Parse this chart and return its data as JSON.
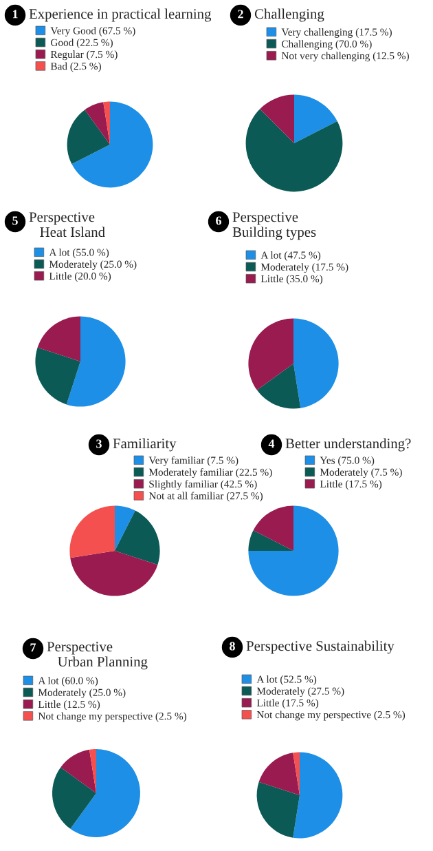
{
  "chart_data": [
    {
      "type": "pie",
      "title": "Experience in practical learning",
      "annotations": [
        "1"
      ],
      "legend": "top left",
      "categories": [
        "Very Good (67.5 %)",
        "Good (22.5 %)",
        "Regular (7.5 %)",
        "Bad (2.5 %)"
      ],
      "values": [
        67.5,
        22.5,
        7.5,
        2.5
      ],
      "colors": [
        "#1e8fe6",
        "#0b5a55",
        "#991b4f",
        "#f4504f"
      ]
    },
    {
      "type": "pie",
      "title": "Challenging",
      "annotations": [
        "2"
      ],
      "legend": "top",
      "categories": [
        "Very challenging (17.5 %)",
        "Challenging (70.0 %)",
        "Not very challenging (12.5 %)"
      ],
      "values": [
        17.5,
        70.0,
        12.5
      ],
      "colors": [
        "#1e8fe6",
        "#0b5a55",
        "#991b4f"
      ]
    },
    {
      "type": "pie",
      "title": "Perspective\n   Heat Island",
      "annotations": [
        "5"
      ],
      "legend": "top",
      "categories": [
        "A lot (55.0 %)",
        "Moderately (25.0 %)",
        "Little (20.0 %)"
      ],
      "values": [
        55.0,
        25.0,
        20.0
      ],
      "colors": [
        "#1e8fe6",
        "#0b5a55",
        "#991b4f"
      ]
    },
    {
      "type": "pie",
      "title": "Perspective\nBuilding types",
      "annotations": [
        "6"
      ],
      "legend": "top",
      "categories": [
        "A lot (47.5 %)",
        "Moderately (17.5 %)",
        "Little (35.0 %)"
      ],
      "values": [
        47.5,
        17.5,
        35.0
      ],
      "colors": [
        "#1e8fe6",
        "#0b5a55",
        "#991b4f"
      ]
    },
    {
      "type": "pie",
      "title": "Familiarity",
      "annotations": [
        "3"
      ],
      "legend": "top",
      "categories": [
        "Very familiar (7.5 %)",
        "Moderately familiar (22.5 %)",
        "Slightly familiar (42.5 %)",
        "Not at all familiar (27.5 %)"
      ],
      "values": [
        7.5,
        22.5,
        42.5,
        27.5
      ],
      "colors": [
        "#1e8fe6",
        "#0b5a55",
        "#991b4f",
        "#f4504f"
      ]
    },
    {
      "type": "pie",
      "title": "Better understanding?",
      "annotations": [
        "4"
      ],
      "legend": "top",
      "categories": [
        "Yes (75.0 %)",
        "Moderately (7.5 %)",
        "Little (17.5 %)"
      ],
      "values": [
        75.0,
        7.5,
        17.5
      ],
      "colors": [
        "#1e8fe6",
        "#0b5a55",
        "#991b4f"
      ]
    },
    {
      "type": "pie",
      "title": "Perspective\n   Urban Planning",
      "annotations": [
        "7"
      ],
      "legend": "top",
      "categories": [
        "A lot (60.0 %)",
        "Moderately (25.0 %)",
        "Little (12.5 %)",
        "Not change my perspective (2.5 %)"
      ],
      "values": [
        60.0,
        25.0,
        12.5,
        2.5
      ],
      "colors": [
        "#1e8fe6",
        "#0b5a55",
        "#991b4f",
        "#f4504f"
      ]
    },
    {
      "type": "pie",
      "title": "Perspective Sustainability",
      "annotations": [
        "8"
      ],
      "legend": "top",
      "categories": [
        "A lot (52.5 %)",
        "Moderately (27.5 %)",
        "Little (17.5 %)",
        "Not change my perspective (2.5 %)"
      ],
      "values": [
        52.5,
        27.5,
        17.5,
        2.5
      ],
      "colors": [
        "#1e8fe6",
        "#0b5a55",
        "#991b4f",
        "#f4504f"
      ]
    }
  ]
}
